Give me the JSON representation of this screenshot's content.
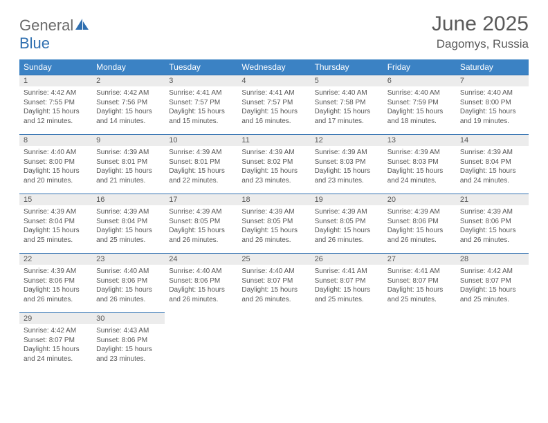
{
  "brand": {
    "word1": "General",
    "word2": "Blue"
  },
  "title": "June 2025",
  "location": "Dagomys, Russia",
  "colors": {
    "header_bg": "#3b82c4",
    "header_text": "#ffffff",
    "daynum_bg": "#ececec",
    "row_border": "#2f6fb0",
    "body_text": "#555555",
    "logo_gray": "#6a6a6a",
    "logo_blue": "#2f6fb0"
  },
  "week_headers": [
    "Sunday",
    "Monday",
    "Tuesday",
    "Wednesday",
    "Thursday",
    "Friday",
    "Saturday"
  ],
  "days": [
    {
      "n": "1",
      "sr": "4:42 AM",
      "ss": "7:55 PM",
      "dl": "15 hours and 12 minutes."
    },
    {
      "n": "2",
      "sr": "4:42 AM",
      "ss": "7:56 PM",
      "dl": "15 hours and 14 minutes."
    },
    {
      "n": "3",
      "sr": "4:41 AM",
      "ss": "7:57 PM",
      "dl": "15 hours and 15 minutes."
    },
    {
      "n": "4",
      "sr": "4:41 AM",
      "ss": "7:57 PM",
      "dl": "15 hours and 16 minutes."
    },
    {
      "n": "5",
      "sr": "4:40 AM",
      "ss": "7:58 PM",
      "dl": "15 hours and 17 minutes."
    },
    {
      "n": "6",
      "sr": "4:40 AM",
      "ss": "7:59 PM",
      "dl": "15 hours and 18 minutes."
    },
    {
      "n": "7",
      "sr": "4:40 AM",
      "ss": "8:00 PM",
      "dl": "15 hours and 19 minutes."
    },
    {
      "n": "8",
      "sr": "4:40 AM",
      "ss": "8:00 PM",
      "dl": "15 hours and 20 minutes."
    },
    {
      "n": "9",
      "sr": "4:39 AM",
      "ss": "8:01 PM",
      "dl": "15 hours and 21 minutes."
    },
    {
      "n": "10",
      "sr": "4:39 AM",
      "ss": "8:01 PM",
      "dl": "15 hours and 22 minutes."
    },
    {
      "n": "11",
      "sr": "4:39 AM",
      "ss": "8:02 PM",
      "dl": "15 hours and 23 minutes."
    },
    {
      "n": "12",
      "sr": "4:39 AM",
      "ss": "8:03 PM",
      "dl": "15 hours and 23 minutes."
    },
    {
      "n": "13",
      "sr": "4:39 AM",
      "ss": "8:03 PM",
      "dl": "15 hours and 24 minutes."
    },
    {
      "n": "14",
      "sr": "4:39 AM",
      "ss": "8:04 PM",
      "dl": "15 hours and 24 minutes."
    },
    {
      "n": "15",
      "sr": "4:39 AM",
      "ss": "8:04 PM",
      "dl": "15 hours and 25 minutes."
    },
    {
      "n": "16",
      "sr": "4:39 AM",
      "ss": "8:04 PM",
      "dl": "15 hours and 25 minutes."
    },
    {
      "n": "17",
      "sr": "4:39 AM",
      "ss": "8:05 PM",
      "dl": "15 hours and 26 minutes."
    },
    {
      "n": "18",
      "sr": "4:39 AM",
      "ss": "8:05 PM",
      "dl": "15 hours and 26 minutes."
    },
    {
      "n": "19",
      "sr": "4:39 AM",
      "ss": "8:05 PM",
      "dl": "15 hours and 26 minutes."
    },
    {
      "n": "20",
      "sr": "4:39 AM",
      "ss": "8:06 PM",
      "dl": "15 hours and 26 minutes."
    },
    {
      "n": "21",
      "sr": "4:39 AM",
      "ss": "8:06 PM",
      "dl": "15 hours and 26 minutes."
    },
    {
      "n": "22",
      "sr": "4:39 AM",
      "ss": "8:06 PM",
      "dl": "15 hours and 26 minutes."
    },
    {
      "n": "23",
      "sr": "4:40 AM",
      "ss": "8:06 PM",
      "dl": "15 hours and 26 minutes."
    },
    {
      "n": "24",
      "sr": "4:40 AM",
      "ss": "8:06 PM",
      "dl": "15 hours and 26 minutes."
    },
    {
      "n": "25",
      "sr": "4:40 AM",
      "ss": "8:07 PM",
      "dl": "15 hours and 26 minutes."
    },
    {
      "n": "26",
      "sr": "4:41 AM",
      "ss": "8:07 PM",
      "dl": "15 hours and 25 minutes."
    },
    {
      "n": "27",
      "sr": "4:41 AM",
      "ss": "8:07 PM",
      "dl": "15 hours and 25 minutes."
    },
    {
      "n": "28",
      "sr": "4:42 AM",
      "ss": "8:07 PM",
      "dl": "15 hours and 25 minutes."
    },
    {
      "n": "29",
      "sr": "4:42 AM",
      "ss": "8:07 PM",
      "dl": "15 hours and 24 minutes."
    },
    {
      "n": "30",
      "sr": "4:43 AM",
      "ss": "8:06 PM",
      "dl": "15 hours and 23 minutes."
    }
  ],
  "labels": {
    "sunrise": "Sunrise:",
    "sunset": "Sunset:",
    "daylight": "Daylight:"
  }
}
